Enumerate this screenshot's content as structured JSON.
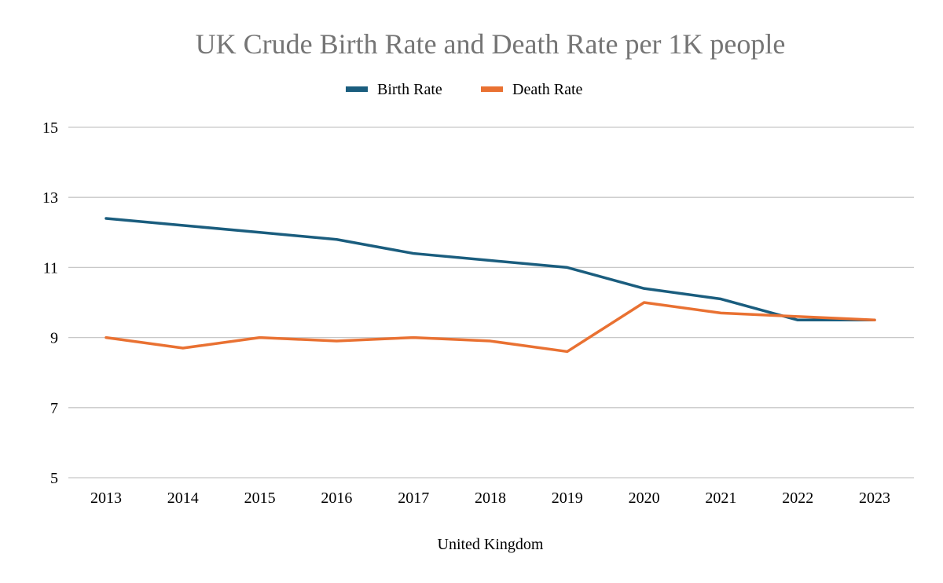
{
  "chart_data": {
    "type": "line",
    "title": "UK Crude Birth Rate and Death Rate per 1K people",
    "xlabel": "United Kingdom",
    "ylabel": "",
    "categories": [
      "2013",
      "2014",
      "2015",
      "2016",
      "2017",
      "2018",
      "2019",
      "2020",
      "2021",
      "2022",
      "2023"
    ],
    "ylim": [
      5,
      15
    ],
    "yticks": [
      5,
      7,
      9,
      11,
      13,
      15
    ],
    "grid": true,
    "legend_position": "top",
    "series": [
      {
        "name": "Birth Rate",
        "color": "#1a5d7e",
        "values": [
          12.4,
          12.2,
          12.0,
          11.8,
          11.4,
          11.2,
          11.0,
          10.4,
          10.1,
          9.5,
          9.5
        ]
      },
      {
        "name": "Death Rate",
        "color": "#e97132",
        "values": [
          9.0,
          8.7,
          9.0,
          8.9,
          9.0,
          8.9,
          8.6,
          10.0,
          9.7,
          9.6,
          9.5
        ]
      }
    ]
  }
}
